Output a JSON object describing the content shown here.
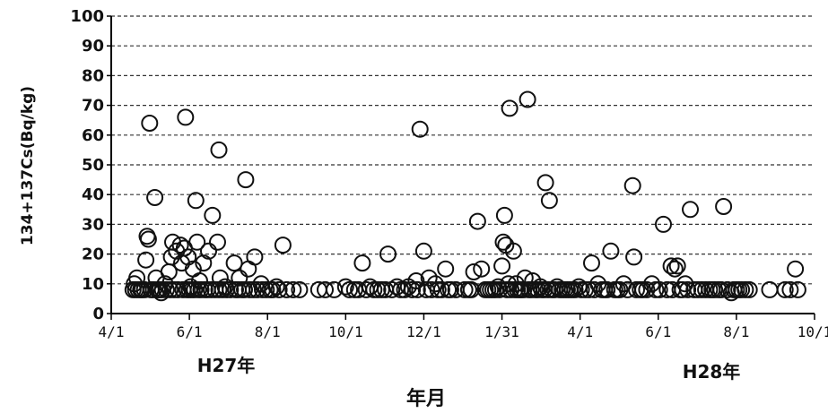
{
  "chart_data": {
    "type": "scatter",
    "ylabel": "134+137Cs(Bq/kg)",
    "xlabel": "年月",
    "year_labels": [
      "H27年",
      "H28年"
    ],
    "ylim": [
      0,
      100
    ],
    "yticks": [
      0,
      10,
      20,
      30,
      40,
      50,
      60,
      70,
      80,
      90,
      100
    ],
    "xlim": [
      "2015-04-01",
      "2016-10-01"
    ],
    "xticks": [
      {
        "date": "2015-04-01",
        "label": "4/1"
      },
      {
        "date": "2015-06-01",
        "label": "6/1"
      },
      {
        "date": "2015-08-01",
        "label": "8/1"
      },
      {
        "date": "2015-10-01",
        "label": "10/1"
      },
      {
        "date": "2015-12-01",
        "label": "12/1"
      },
      {
        "date": "2016-01-31",
        "label": "1/31"
      },
      {
        "date": "2016-04-01",
        "label": "4/1"
      },
      {
        "date": "2016-06-01",
        "label": "6/1"
      },
      {
        "date": "2016-08-01",
        "label": "8/1"
      },
      {
        "date": "2016-10-01",
        "label": "10/1"
      }
    ],
    "grid": "horizontal dashed",
    "marker": "open circle",
    "points": [
      {
        "x": "2015-04-19",
        "y": 10
      },
      {
        "x": "2015-04-21",
        "y": 12
      },
      {
        "x": "2015-04-24",
        "y": 8
      },
      {
        "x": "2015-04-28",
        "y": 18
      },
      {
        "x": "2015-04-29",
        "y": 26
      },
      {
        "x": "2015-04-30",
        "y": 25
      },
      {
        "x": "2015-05-01",
        "y": 64
      },
      {
        "x": "2015-05-05",
        "y": 39
      },
      {
        "x": "2015-05-06",
        "y": 12
      },
      {
        "x": "2015-05-08",
        "y": 8
      },
      {
        "x": "2015-05-10",
        "y": 7
      },
      {
        "x": "2015-05-13",
        "y": 10
      },
      {
        "x": "2015-05-16",
        "y": 14
      },
      {
        "x": "2015-05-18",
        "y": 19
      },
      {
        "x": "2015-05-19",
        "y": 24
      },
      {
        "x": "2015-05-22",
        "y": 21
      },
      {
        "x": "2015-05-25",
        "y": 23
      },
      {
        "x": "2015-05-26",
        "y": 17
      },
      {
        "x": "2015-05-28",
        "y": 22
      },
      {
        "x": "2015-05-29",
        "y": 66
      },
      {
        "x": "2015-05-31",
        "y": 19
      },
      {
        "x": "2015-06-02",
        "y": 9
      },
      {
        "x": "2015-06-04",
        "y": 15
      },
      {
        "x": "2015-06-06",
        "y": 38
      },
      {
        "x": "2015-06-07",
        "y": 24
      },
      {
        "x": "2015-06-09",
        "y": 11
      },
      {
        "x": "2015-06-12",
        "y": 17
      },
      {
        "x": "2015-06-16",
        "y": 21
      },
      {
        "x": "2015-06-19",
        "y": 33
      },
      {
        "x": "2015-06-23",
        "y": 24
      },
      {
        "x": "2015-06-24",
        "y": 55
      },
      {
        "x": "2015-06-25",
        "y": 12
      },
      {
        "x": "2015-06-29",
        "y": 9
      },
      {
        "x": "2015-07-06",
        "y": 17
      },
      {
        "x": "2015-07-10",
        "y": 12
      },
      {
        "x": "2015-07-15",
        "y": 45
      },
      {
        "x": "2015-07-17",
        "y": 15
      },
      {
        "x": "2015-07-22",
        "y": 19
      },
      {
        "x": "2015-07-27",
        "y": 10
      },
      {
        "x": "2015-08-08",
        "y": 9
      },
      {
        "x": "2015-08-13",
        "y": 23
      },
      {
        "x": "2015-08-26",
        "y": 8
      },
      {
        "x": "2015-09-10",
        "y": 8
      },
      {
        "x": "2015-09-22",
        "y": 8
      },
      {
        "x": "2015-10-01",
        "y": 9
      },
      {
        "x": "2015-10-08",
        "y": 8
      },
      {
        "x": "2015-10-14",
        "y": 17
      },
      {
        "x": "2015-10-20",
        "y": 9
      },
      {
        "x": "2015-10-29",
        "y": 8
      },
      {
        "x": "2015-11-03",
        "y": 20
      },
      {
        "x": "2015-11-10",
        "y": 9
      },
      {
        "x": "2015-11-19",
        "y": 9
      },
      {
        "x": "2015-11-25",
        "y": 11
      },
      {
        "x": "2015-11-28",
        "y": 62
      },
      {
        "x": "2015-12-01",
        "y": 21
      },
      {
        "x": "2015-12-05",
        "y": 12
      },
      {
        "x": "2015-12-10",
        "y": 10
      },
      {
        "x": "2015-12-18",
        "y": 15
      },
      {
        "x": "2015-12-22",
        "y": 8
      },
      {
        "x": "2016-01-02",
        "y": 8
      },
      {
        "x": "2016-01-09",
        "y": 14
      },
      {
        "x": "2016-01-12",
        "y": 31
      },
      {
        "x": "2016-01-15",
        "y": 15
      },
      {
        "x": "2016-01-22",
        "y": 8
      },
      {
        "x": "2016-01-28",
        "y": 9
      },
      {
        "x": "2016-01-31",
        "y": 16
      },
      {
        "x": "2016-02-01",
        "y": 24
      },
      {
        "x": "2016-02-02",
        "y": 33
      },
      {
        "x": "2016-02-03",
        "y": 23
      },
      {
        "x": "2016-02-05",
        "y": 10
      },
      {
        "x": "2016-02-06",
        "y": 69
      },
      {
        "x": "2016-02-09",
        "y": 21
      },
      {
        "x": "2016-02-11",
        "y": 10
      },
      {
        "x": "2016-02-14",
        "y": 8
      },
      {
        "x": "2016-02-18",
        "y": 12
      },
      {
        "x": "2016-02-20",
        "y": 72
      },
      {
        "x": "2016-02-24",
        "y": 11
      },
      {
        "x": "2016-03-01",
        "y": 9
      },
      {
        "x": "2016-03-05",
        "y": 44
      },
      {
        "x": "2016-03-08",
        "y": 38
      },
      {
        "x": "2016-03-14",
        "y": 9
      },
      {
        "x": "2016-03-22",
        "y": 8
      },
      {
        "x": "2016-03-31",
        "y": 9
      },
      {
        "x": "2016-04-10",
        "y": 17
      },
      {
        "x": "2016-04-15",
        "y": 10
      },
      {
        "x": "2016-04-25",
        "y": 21
      },
      {
        "x": "2016-05-05",
        "y": 10
      },
      {
        "x": "2016-05-12",
        "y": 43
      },
      {
        "x": "2016-05-13",
        "y": 19
      },
      {
        "x": "2016-05-18",
        "y": 8
      },
      {
        "x": "2016-05-27",
        "y": 10
      },
      {
        "x": "2016-06-05",
        "y": 30
      },
      {
        "x": "2016-06-08",
        "y": 8
      },
      {
        "x": "2016-06-11",
        "y": 16
      },
      {
        "x": "2016-06-14",
        "y": 15
      },
      {
        "x": "2016-06-16",
        "y": 16
      },
      {
        "x": "2016-06-22",
        "y": 10
      },
      {
        "x": "2016-06-26",
        "y": 35
      },
      {
        "x": "2016-07-05",
        "y": 8
      },
      {
        "x": "2016-07-15",
        "y": 8
      },
      {
        "x": "2016-07-22",
        "y": 36
      },
      {
        "x": "2016-07-25",
        "y": 8
      },
      {
        "x": "2016-07-28",
        "y": 7
      },
      {
        "x": "2016-08-03",
        "y": 8
      },
      {
        "x": "2016-08-08",
        "y": 8
      },
      {
        "x": "2016-08-27",
        "y": 8
      },
      {
        "x": "2016-09-08",
        "y": 8
      },
      {
        "x": "2016-09-12",
        "y": 8
      },
      {
        "x": "2016-09-16",
        "y": 15
      },
      {
        "x": "2016-09-18",
        "y": 8
      }
    ],
    "baseline_points": {
      "y": 8,
      "dates": [
        "2015-04-18",
        "2015-04-20",
        "2015-04-22",
        "2015-04-25",
        "2015-04-27",
        "2015-05-02",
        "2015-05-04",
        "2015-05-07",
        "2015-05-09",
        "2015-05-11",
        "2015-05-14",
        "2015-05-17",
        "2015-05-20",
        "2015-05-23",
        "2015-05-27",
        "2015-05-30",
        "2015-06-01",
        "2015-06-03",
        "2015-06-05",
        "2015-06-08",
        "2015-06-10",
        "2015-06-13",
        "2015-06-15",
        "2015-06-18",
        "2015-06-21",
        "2015-06-24",
        "2015-06-27",
        "2015-06-30",
        "2015-07-03",
        "2015-07-07",
        "2015-07-09",
        "2015-07-12",
        "2015-07-14",
        "2015-07-18",
        "2015-07-21",
        "2015-07-24",
        "2015-07-28",
        "2015-07-31",
        "2015-08-03",
        "2015-08-05",
        "2015-08-10",
        "2015-08-16",
        "2015-08-21",
        "2015-09-15",
        "2015-10-04",
        "2015-10-11",
        "2015-10-17",
        "2015-10-23",
        "2015-10-26",
        "2015-11-01",
        "2015-11-06",
        "2015-11-13",
        "2015-11-16",
        "2015-11-22",
        "2015-11-26",
        "2015-12-03",
        "2015-12-07",
        "2015-12-12",
        "2015-12-15",
        "2015-12-20",
        "2015-12-26",
        "2016-01-05",
        "2016-01-07",
        "2016-01-18",
        "2016-01-20",
        "2016-01-24",
        "2016-01-26",
        "2016-01-29",
        "2016-02-04",
        "2016-02-07",
        "2016-02-10",
        "2016-02-12",
        "2016-02-15",
        "2016-02-17",
        "2016-02-21",
        "2016-02-23",
        "2016-02-26",
        "2016-02-28",
        "2016-03-02",
        "2016-03-04",
        "2016-03-07",
        "2016-03-10",
        "2016-03-12",
        "2016-03-16",
        "2016-03-18",
        "2016-03-20",
        "2016-03-24",
        "2016-03-26",
        "2016-03-28",
        "2016-04-02",
        "2016-04-05",
        "2016-04-08",
        "2016-04-12",
        "2016-04-18",
        "2016-04-20",
        "2016-04-22",
        "2016-04-28",
        "2016-04-30",
        "2016-05-02",
        "2016-05-08",
        "2016-05-15",
        "2016-05-20",
        "2016-05-23",
        "2016-05-30",
        "2016-06-02",
        "2016-06-12",
        "2016-06-18",
        "2016-06-20",
        "2016-06-24",
        "2016-06-29",
        "2016-07-02",
        "2016-07-08",
        "2016-07-11",
        "2016-07-13",
        "2016-07-18",
        "2016-07-20",
        "2016-07-30",
        "2016-08-01",
        "2016-08-05",
        "2016-08-11"
      ]
    }
  }
}
